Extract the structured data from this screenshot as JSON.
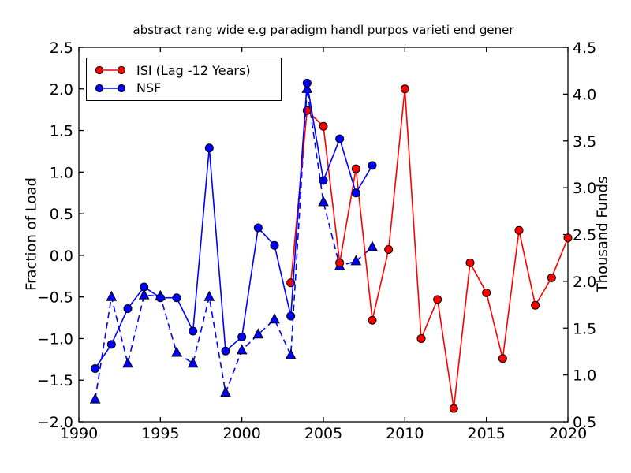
{
  "figure": {
    "background_color": "#ffffff"
  },
  "chart_data": {
    "type": "line",
    "title": "abstract rang wide e.g paradigm handl purpos varieti end gener",
    "xlabel": "",
    "ylabel_left": "Fraction of Load",
    "ylabel_right": "Thousand Funds",
    "xlim": [
      1990,
      2020
    ],
    "ylim_left": [
      -2.0,
      2.5
    ],
    "ylim_right": [
      0.5,
      4.5
    ],
    "grid": false,
    "legend_position": "upper left",
    "x_ticks": [
      1990,
      1995,
      2000,
      2005,
      2010,
      2015,
      2020
    ],
    "x_tick_labels": [
      "1990",
      "1995",
      "2000",
      "2005",
      "2010",
      "2015",
      "2020"
    ],
    "y_ticks_left": [
      2.5,
      2.0,
      1.5,
      1.0,
      0.5,
      0.0,
      -0.5,
      -1.0,
      -1.5,
      -2.0
    ],
    "y_tick_labels_left": [
      "2.5",
      "2.0",
      "1.5",
      "1.0",
      "0.5",
      "0.0",
      "−0.5",
      "−1.0",
      "−1.5",
      "−2.0"
    ],
    "y_ticks_right": [
      4.5,
      4.0,
      3.5,
      3.0,
      2.5,
      2.0,
      1.5,
      1.0,
      0.5
    ],
    "y_tick_labels_right": [
      "4.5",
      "4.0",
      "3.5",
      "3.0",
      "2.5",
      "2.0",
      "1.5",
      "1.0",
      "0.5"
    ],
    "series": [
      {
        "name": "ISI (Lag -12 Years)",
        "color": "#ff0000",
        "marker": "circle",
        "linestyle": "solid",
        "in_legend": true,
        "x": [
          2003,
          2004,
          2005,
          2006,
          2007,
          2008,
          2009,
          2010,
          2011,
          2012,
          2013,
          2014,
          2015,
          2016,
          2017,
          2018,
          2019,
          2020
        ],
        "y": [
          -0.33,
          1.74,
          1.55,
          -0.09,
          1.04,
          -0.78,
          0.07,
          2.0,
          -1.0,
          -0.53,
          -1.84,
          -0.09,
          -0.45,
          -1.24,
          0.3,
          -0.6,
          -0.27,
          0.21
        ]
      },
      {
        "name": "NSF",
        "color": "#0000ff",
        "marker": "circle",
        "linestyle": "solid",
        "in_legend": true,
        "x": [
          1991,
          1992,
          1993,
          1994,
          1995,
          1996,
          1997,
          1998,
          1999,
          2000,
          2001,
          2002,
          2003,
          2004,
          2005,
          2006,
          2007,
          2008
        ],
        "y": [
          -1.36,
          -1.07,
          -0.64,
          -0.38,
          -0.51,
          -0.51,
          -0.91,
          1.29,
          -1.15,
          -0.98,
          0.33,
          0.12,
          -0.73,
          2.07,
          0.9,
          1.4,
          0.75,
          1.08
        ]
      },
      {
        "name": "",
        "color": "#0000ff",
        "marker": "triangle-up",
        "linestyle": "dashed",
        "in_legend": false,
        "x": [
          1991,
          1992,
          1993,
          1994,
          1995,
          1996,
          1997,
          1998,
          1999,
          2000,
          2001,
          2002,
          2003,
          2004,
          2005,
          2006,
          2007,
          2008
        ],
        "y": [
          -1.73,
          -0.5,
          -1.3,
          -0.48,
          -0.49,
          -1.17,
          -1.3,
          -0.5,
          -1.65,
          -1.14,
          -0.95,
          -0.77,
          -1.2,
          2.0,
          0.64,
          -0.13,
          -0.07,
          0.1
        ]
      }
    ],
    "legend": [
      {
        "label": "ISI (Lag -12 Years)",
        "color": "#ff0000"
      },
      {
        "label": "NSF",
        "color": "#0000ff"
      }
    ]
  }
}
